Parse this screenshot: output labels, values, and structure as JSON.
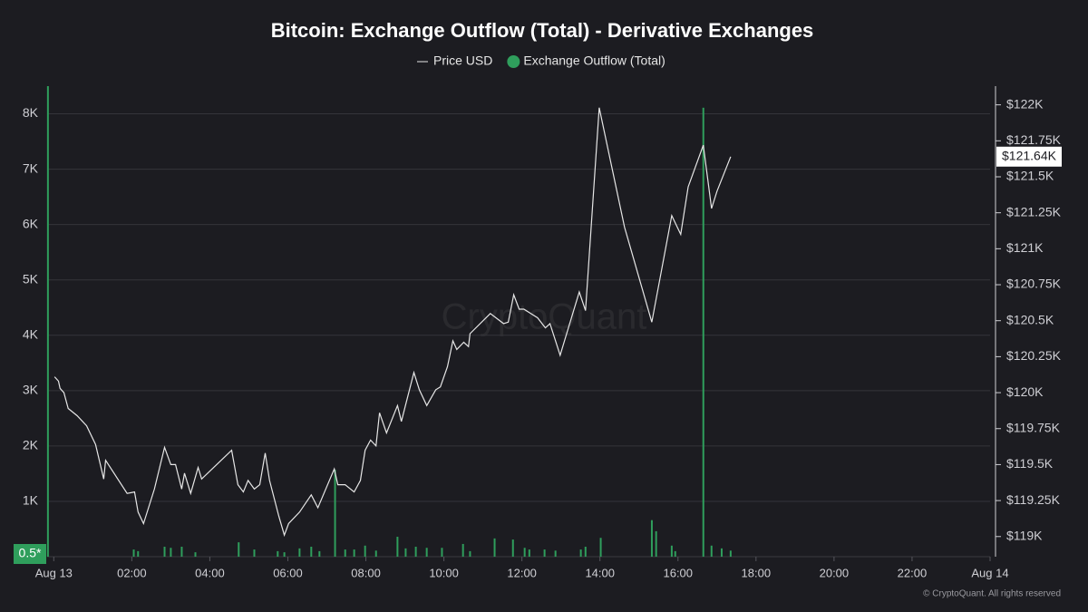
{
  "chart_data": {
    "type": "combo",
    "title": "Bitcoin: Exchange Outflow (Total) - Derivative Exchanges",
    "watermark": "CryptoQuant",
    "credit": "© CryptoQuant. All rights reserved",
    "xlim": [
      -0.17,
      24
    ],
    "xticks": [
      {
        "value": 0,
        "label": "Aug 13"
      },
      {
        "value": 2,
        "label": "02:00"
      },
      {
        "value": 4,
        "label": "04:00"
      },
      {
        "value": 6,
        "label": "06:00"
      },
      {
        "value": 8,
        "label": "08:00"
      },
      {
        "value": 10,
        "label": "10:00"
      },
      {
        "value": 12,
        "label": "12:00"
      },
      {
        "value": 14,
        "label": "14:00"
      },
      {
        "value": 16,
        "label": "16:00"
      },
      {
        "value": 18,
        "label": "18:00"
      },
      {
        "value": 20,
        "label": "20:00"
      },
      {
        "value": 22,
        "label": "22:00"
      },
      {
        "value": 24,
        "label": "Aug 14"
      }
    ],
    "ylim": [
      0,
      8500
    ],
    "yticks": [
      {
        "value": 1000,
        "label": "1K"
      },
      {
        "value": 2000,
        "label": "2K"
      },
      {
        "value": 3000,
        "label": "3K"
      },
      {
        "value": 4000,
        "label": "4K"
      },
      {
        "value": 5000,
        "label": "5K"
      },
      {
        "value": 6000,
        "label": "6K"
      },
      {
        "value": 7000,
        "label": "7K"
      },
      {
        "value": 8000,
        "label": "8K"
      }
    ],
    "y2lim": [
      118860,
      122130
    ],
    "y2ticks": [
      {
        "value": 119000,
        "label": "$119K"
      },
      {
        "value": 119250,
        "label": "$119.25K"
      },
      {
        "value": 119500,
        "label": "$119.5K"
      },
      {
        "value": 119750,
        "label": "$119.75K"
      },
      {
        "value": 120000,
        "label": "$120K"
      },
      {
        "value": 120250,
        "label": "$120.25K"
      },
      {
        "value": 120500,
        "label": "$120.5K"
      },
      {
        "value": 120750,
        "label": "$120.75K"
      },
      {
        "value": 121000,
        "label": "$121K"
      },
      {
        "value": 121250,
        "label": "$121.25K"
      },
      {
        "value": 121500,
        "label": "$121.5K"
      },
      {
        "value": 121750,
        "label": "$121.75K"
      },
      {
        "value": 122000,
        "label": "$122K"
      }
    ],
    "grid": true,
    "series": [
      {
        "name": "Price USD",
        "type": "line",
        "axis": "y2",
        "color": "#e6e6e6",
        "x": [
          0.02,
          0.12,
          0.16,
          0.26,
          0.37,
          0.6,
          0.84,
          1.07,
          1.28,
          1.33,
          1.88,
          2.07,
          2.16,
          2.3,
          2.58,
          2.84,
          3.0,
          3.12,
          3.28,
          3.35,
          3.51,
          3.7,
          3.79,
          4.56,
          4.72,
          4.86,
          4.98,
          5.14,
          5.28,
          5.42,
          5.53,
          5.77,
          5.91,
          6.02,
          6.3,
          6.6,
          6.77,
          7.19,
          7.28,
          7.47,
          7.7,
          7.86,
          7.98,
          8.12,
          8.26,
          8.35,
          8.53,
          8.81,
          8.91,
          9.23,
          9.37,
          9.56,
          9.79,
          9.91,
          10.09,
          10.23,
          10.33,
          10.51,
          10.63,
          10.67,
          11.19,
          11.53,
          11.65,
          11.79,
          11.93,
          12.05,
          12.4,
          12.6,
          12.72,
          12.98,
          13.47,
          13.63,
          13.98,
          14.63,
          15.33,
          15.84,
          16.07,
          16.26,
          16.65,
          16.86,
          17.0,
          17.35
        ],
        "values": [
          120110,
          120080,
          120030,
          120000,
          119890,
          119840,
          119770,
          119640,
          119400,
          119530,
          119300,
          119310,
          119170,
          119090,
          119330,
          119620,
          119500,
          119500,
          119330,
          119440,
          119300,
          119480,
          119400,
          119600,
          119360,
          119310,
          119390,
          119330,
          119360,
          119580,
          119390,
          119140,
          119010,
          119090,
          119170,
          119290,
          119200,
          119470,
          119360,
          119360,
          119310,
          119390,
          119600,
          119670,
          119630,
          119860,
          119720,
          119910,
          119800,
          120140,
          120020,
          119910,
          120020,
          120040,
          120180,
          120360,
          120300,
          120350,
          120320,
          120410,
          120550,
          120480,
          120490,
          120680,
          120580,
          120580,
          120520,
          120450,
          120480,
          120260,
          120700,
          120570,
          121980,
          121150,
          120490,
          121230,
          121100,
          121430,
          121720,
          121280,
          121400,
          121640
        ]
      },
      {
        "name": "Exchange Outflow (Total)",
        "type": "bar",
        "axis": "y",
        "color": "#2f9e5c",
        "x": [
          -0.15,
          2.05,
          2.16,
          2.84,
          3.0,
          3.28,
          3.63,
          4.74,
          5.14,
          5.74,
          5.91,
          6.3,
          6.6,
          6.81,
          7.21,
          7.47,
          7.7,
          7.98,
          8.26,
          8.81,
          9.02,
          9.28,
          9.56,
          9.95,
          10.49,
          10.67,
          11.3,
          11.77,
          12.07,
          12.19,
          12.58,
          12.86,
          13.51,
          13.63,
          14.02,
          15.33,
          15.44,
          15.84,
          15.93,
          16.65,
          16.86,
          17.12,
          17.35
        ],
        "values": [
          8500,
          130,
          100,
          180,
          160,
          180,
          80,
          260,
          130,
          100,
          80,
          150,
          180,
          100,
          1570,
          130,
          130,
          200,
          110,
          360,
          150,
          180,
          160,
          160,
          230,
          100,
          330,
          310,
          160,
          130,
          130,
          110,
          130,
          180,
          340,
          660,
          460,
          200,
          100,
          8110,
          200,
          150,
          110
        ]
      }
    ],
    "annotations": [
      {
        "label": "0.5*",
        "value": 0.5,
        "axis": "y"
      },
      {
        "label": "$121.64K",
        "value": 121640,
        "axis": "y2"
      }
    ]
  }
}
